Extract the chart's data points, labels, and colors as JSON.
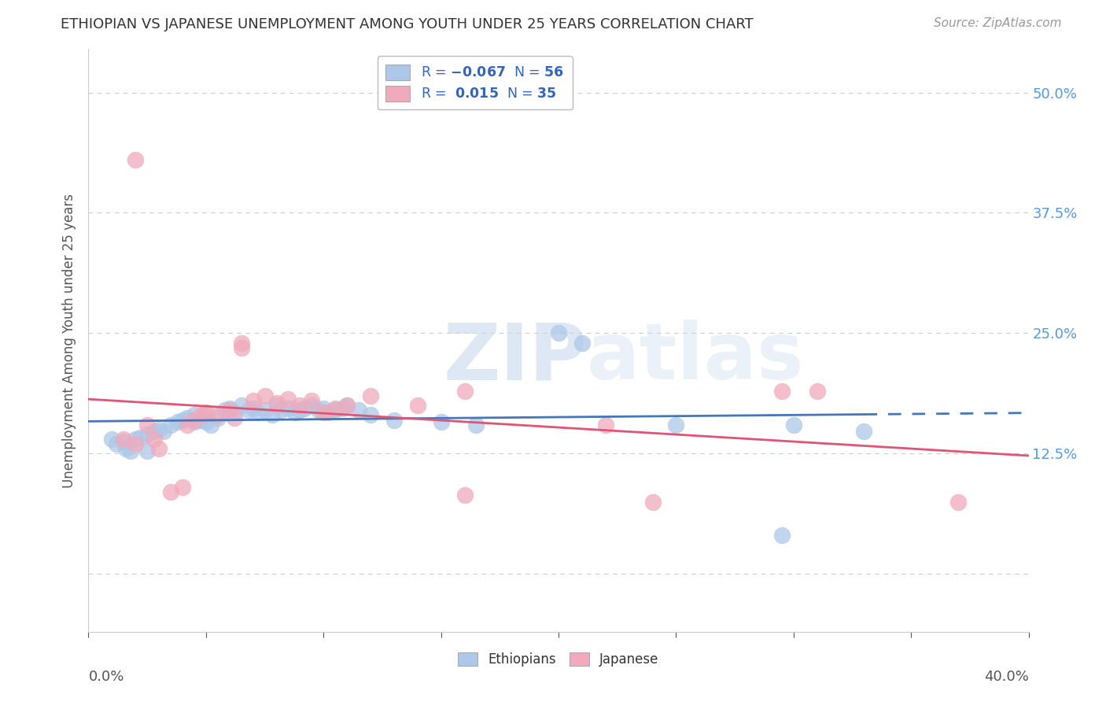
{
  "title": "ETHIOPIAN VS JAPANESE UNEMPLOYMENT AMONG YOUTH UNDER 25 YEARS CORRELATION CHART",
  "source": "Source: ZipAtlas.com",
  "ylabel": "Unemployment Among Youth under 25 years",
  "ytick_vals": [
    0.0,
    0.125,
    0.25,
    0.375,
    0.5
  ],
  "ytick_labels": [
    "",
    "12.5%",
    "25.0%",
    "37.5%",
    "50.0%"
  ],
  "xtick_positions": [
    0.0,
    0.05,
    0.1,
    0.15,
    0.2,
    0.25,
    0.3,
    0.35,
    0.4
  ],
  "xmin": 0.0,
  "xmax": 0.4,
  "ymin": -0.06,
  "ymax": 0.545,
  "blue_R": -0.067,
  "blue_N": 56,
  "pink_R": 0.015,
  "pink_N": 35,
  "blue_color": "#adc8e8",
  "blue_line_color": "#4477bb",
  "pink_color": "#f0aabb",
  "pink_line_color": "#e05575",
  "blue_line_solid_end": 0.33,
  "blue_scatter": [
    [
      0.01,
      0.14
    ],
    [
      0.012,
      0.135
    ],
    [
      0.015,
      0.138
    ],
    [
      0.016,
      0.13
    ],
    [
      0.018,
      0.128
    ],
    [
      0.02,
      0.14
    ],
    [
      0.022,
      0.142
    ],
    [
      0.025,
      0.145
    ],
    [
      0.028,
      0.148
    ],
    [
      0.03,
      0.15
    ],
    [
      0.032,
      0.148
    ],
    [
      0.035,
      0.155
    ],
    [
      0.038,
      0.158
    ],
    [
      0.04,
      0.16
    ],
    [
      0.042,
      0.162
    ],
    [
      0.045,
      0.165
    ],
    [
      0.045,
      0.158
    ],
    [
      0.048,
      0.16
    ],
    [
      0.05,
      0.165
    ],
    [
      0.05,
      0.158
    ],
    [
      0.052,
      0.155
    ],
    [
      0.055,
      0.162
    ],
    [
      0.058,
      0.17
    ],
    [
      0.06,
      0.172
    ],
    [
      0.062,
      0.168
    ],
    [
      0.065,
      0.175
    ],
    [
      0.068,
      0.17
    ],
    [
      0.07,
      0.172
    ],
    [
      0.072,
      0.168
    ],
    [
      0.075,
      0.17
    ],
    [
      0.078,
      0.165
    ],
    [
      0.08,
      0.175
    ],
    [
      0.082,
      0.17
    ],
    [
      0.085,
      0.172
    ],
    [
      0.088,
      0.168
    ],
    [
      0.09,
      0.17
    ],
    [
      0.092,
      0.172
    ],
    [
      0.095,
      0.175
    ],
    [
      0.098,
      0.17
    ],
    [
      0.1,
      0.172
    ],
    [
      0.102,
      0.168
    ],
    [
      0.105,
      0.17
    ],
    [
      0.108,
      0.172
    ],
    [
      0.11,
      0.175
    ],
    [
      0.115,
      0.17
    ],
    [
      0.12,
      0.165
    ],
    [
      0.13,
      0.16
    ],
    [
      0.15,
      0.158
    ],
    [
      0.165,
      0.155
    ],
    [
      0.2,
      0.25
    ],
    [
      0.21,
      0.24
    ],
    [
      0.25,
      0.155
    ],
    [
      0.3,
      0.155
    ],
    [
      0.33,
      0.148
    ],
    [
      0.025,
      0.128
    ],
    [
      0.295,
      0.04
    ]
  ],
  "pink_scatter": [
    [
      0.015,
      0.14
    ],
    [
      0.02,
      0.135
    ],
    [
      0.025,
      0.155
    ],
    [
      0.028,
      0.14
    ],
    [
      0.03,
      0.13
    ],
    [
      0.035,
      0.085
    ],
    [
      0.04,
      0.09
    ],
    [
      0.042,
      0.155
    ],
    [
      0.045,
      0.16
    ],
    [
      0.048,
      0.165
    ],
    [
      0.05,
      0.168
    ],
    [
      0.055,
      0.165
    ],
    [
      0.06,
      0.17
    ],
    [
      0.062,
      0.162
    ],
    [
      0.065,
      0.24
    ],
    [
      0.065,
      0.235
    ],
    [
      0.07,
      0.18
    ],
    [
      0.075,
      0.185
    ],
    [
      0.08,
      0.178
    ],
    [
      0.085,
      0.182
    ],
    [
      0.09,
      0.175
    ],
    [
      0.095,
      0.18
    ],
    [
      0.1,
      0.168
    ],
    [
      0.105,
      0.172
    ],
    [
      0.11,
      0.175
    ],
    [
      0.12,
      0.185
    ],
    [
      0.14,
      0.175
    ],
    [
      0.16,
      0.19
    ],
    [
      0.02,
      0.43
    ],
    [
      0.295,
      0.19
    ],
    [
      0.31,
      0.19
    ],
    [
      0.22,
      0.155
    ],
    [
      0.24,
      0.075
    ],
    [
      0.37,
      0.075
    ],
    [
      0.16,
      0.082
    ]
  ],
  "background_color": "#ffffff",
  "grid_color": "#cccccc",
  "watermark_zip": "ZIP",
  "watermark_atlas": "atlas",
  "legend_labels": [
    "Ethiopians",
    "Japanese"
  ]
}
